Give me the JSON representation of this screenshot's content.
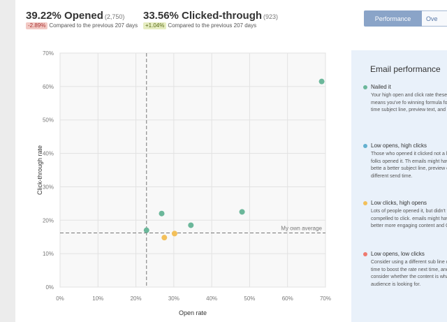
{
  "stats": {
    "opened": {
      "value": "39.22% Opened",
      "count": "(2,750)",
      "change": "-2.89%",
      "compare": "Compared to the previous 207 days"
    },
    "clicked": {
      "value": "33.56% Clicked-through",
      "count": "(923)",
      "change": "+1.04%",
      "compare": "Compared to the previous 207 days"
    }
  },
  "tabs": [
    {
      "label": "Performance",
      "active": true
    },
    {
      "label": "Ove",
      "active": false
    }
  ],
  "colors": {
    "green": "#6bb79a",
    "blue": "#63b0cf",
    "yellow": "#f3c05a",
    "red": "#ef7a6f",
    "panel": "#e9f1fa"
  },
  "chart_data": {
    "type": "scatter",
    "xlabel": "Open rate",
    "ylabel": "Click-through rate",
    "xlim": [
      0,
      70
    ],
    "ylim": [
      0,
      70
    ],
    "xticks": [
      "0%",
      "10%",
      "20%",
      "30%",
      "40%",
      "50%",
      "60%",
      "70%"
    ],
    "yticks": [
      "0%",
      "10%",
      "20%",
      "30%",
      "40%",
      "50%",
      "60%",
      "70%"
    ],
    "grid": true,
    "vline": 22.8,
    "hline": 16.2,
    "hline_label": "My own average",
    "points": [
      {
        "x": 69,
        "y": 61.5,
        "category": "green"
      },
      {
        "x": 48,
        "y": 22.5,
        "category": "green"
      },
      {
        "x": 26.8,
        "y": 22,
        "category": "green"
      },
      {
        "x": 34.5,
        "y": 18.5,
        "category": "green"
      },
      {
        "x": 22.8,
        "y": 17,
        "category": "green"
      },
      {
        "x": 27.5,
        "y": 14.8,
        "category": "yellow"
      },
      {
        "x": 30.2,
        "y": 16,
        "category": "yellow"
      }
    ]
  },
  "info": {
    "title": "Email performance",
    "items": [
      {
        "title": "Nailed it",
        "color": "green",
        "desc": "Your high open and click rate these emails means you've fo winning formula for send time subject line, preview text, and content."
      },
      {
        "title": "Low opens, high clicks",
        "color": "blue",
        "desc": "Those who opened it clicked not a lot of folks opened it. Th emails might have fared bette a better subject line, preview or a different send time."
      },
      {
        "title": "Low clicks, high opens",
        "color": "yellow",
        "desc": "Lots of people opened it, but didn't feel compelled to click. emails might have fared better more engaging content and C"
      },
      {
        "title": "Low opens, low clicks",
        "color": "red",
        "desc": "Consider using a different sub line or send time to boost the rate next time, and consider whether the content is what you audience is looking for."
      }
    ]
  }
}
